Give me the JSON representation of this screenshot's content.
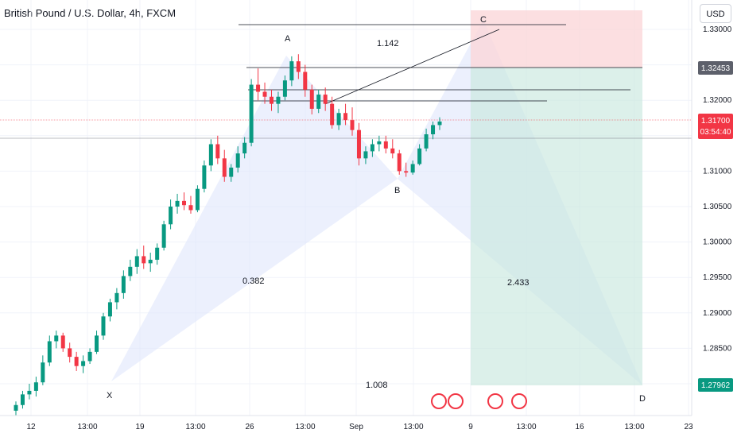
{
  "title": "British Pound / U.S. Dollar, 4h, FXCM",
  "currency": "USD",
  "price_tags": {
    "c_level": "1.32453",
    "current": "1.31700",
    "countdown": "03:54:40",
    "d_level": "1.27962"
  },
  "colors": {
    "up": "#089981",
    "down": "#f23645",
    "pattern": "#dfe6fb",
    "profit": "#c9e8df",
    "loss": "#fbd7da"
  },
  "chart_data": {
    "type": "candlestick",
    "title": "British Pound / U.S. Dollar, 4h, FXCM",
    "ylim": [
      1.2735,
      1.3355
    ],
    "y_ticks": [
      "1.33000",
      "1.32500",
      "1.32000",
      "1.31500",
      "1.31000",
      "1.30500",
      "1.30000",
      "1.29500",
      "1.29000",
      "1.28500",
      "1.28000"
    ],
    "x_ticks": [
      "12",
      "13:00",
      "19",
      "13:00",
      "26",
      "13:00",
      "Sep",
      "13:00",
      "9",
      "13:00",
      "16",
      "13:00",
      "23"
    ],
    "pattern_points": [
      {
        "label": "X",
        "price": 1.2802
      },
      {
        "label": "A",
        "price": 1.3265
      },
      {
        "label": "B",
        "price": 1.3092
      },
      {
        "label": "C",
        "price": 1.3296
      },
      {
        "label": "D",
        "price": 1.2796
      }
    ],
    "pattern_ratios": [
      "0.382",
      "1.142",
      "2.433",
      "1.008"
    ],
    "levels": [
      1.3315,
      1.32453,
      1.3215,
      1.3198,
      1.3171
    ],
    "candles": [
      [
        1.2762,
        1.2775,
        1.2755,
        1.277
      ],
      [
        1.277,
        1.279,
        1.2765,
        1.2785
      ],
      [
        1.2785,
        1.28,
        1.2778,
        1.279
      ],
      [
        1.279,
        1.281,
        1.2782,
        1.2802
      ],
      [
        1.2802,
        1.284,
        1.2798,
        1.283
      ],
      [
        1.283,
        1.2868,
        1.2825,
        1.286
      ],
      [
        1.286,
        1.2875,
        1.285,
        1.2868
      ],
      [
        1.2868,
        1.2872,
        1.2845,
        1.285
      ],
      [
        1.285,
        1.2858,
        1.283,
        1.2838
      ],
      [
        1.2838,
        1.2845,
        1.2818,
        1.2825
      ],
      [
        1.2825,
        1.284,
        1.2815,
        1.2832
      ],
      [
        1.2832,
        1.285,
        1.2828,
        1.2845
      ],
      [
        1.2845,
        1.2875,
        1.2842,
        1.2868
      ],
      [
        1.2868,
        1.29,
        1.2862,
        1.2895
      ],
      [
        1.2895,
        1.292,
        1.2888,
        1.2915
      ],
      [
        1.2915,
        1.2935,
        1.2905,
        1.2928
      ],
      [
        1.2928,
        1.296,
        1.292,
        1.2952
      ],
      [
        1.2952,
        1.2975,
        1.2945,
        1.2965
      ],
      [
        1.2965,
        1.299,
        1.2955,
        1.298
      ],
      [
        1.298,
        1.2995,
        1.2962,
        1.297
      ],
      [
        1.297,
        1.2985,
        1.2958,
        1.2975
      ],
      [
        1.2975,
        1.2998,
        1.2968,
        1.2992
      ],
      [
        1.2992,
        1.303,
        1.2988,
        1.3025
      ],
      [
        1.3025,
        1.306,
        1.3018,
        1.305
      ],
      [
        1.305,
        1.3068,
        1.304,
        1.3058
      ],
      [
        1.3058,
        1.307,
        1.3045,
        1.3052
      ],
      [
        1.3052,
        1.3065,
        1.304,
        1.3045
      ],
      [
        1.3045,
        1.308,
        1.3042,
        1.3075
      ],
      [
        1.3075,
        1.3115,
        1.307,
        1.3108
      ],
      [
        1.3108,
        1.3145,
        1.31,
        1.3138
      ],
      [
        1.3138,
        1.315,
        1.311,
        1.3118
      ],
      [
        1.3118,
        1.313,
        1.3085,
        1.3092
      ],
      [
        1.3092,
        1.311,
        1.3085,
        1.3105
      ],
      [
        1.3105,
        1.3135,
        1.3098,
        1.3125
      ],
      [
        1.3125,
        1.3148,
        1.3118,
        1.314
      ],
      [
        1.314,
        1.323,
        1.3135,
        1.3222
      ],
      [
        1.3222,
        1.3245,
        1.32,
        1.3212
      ],
      [
        1.3212,
        1.3225,
        1.3195,
        1.3205
      ],
      [
        1.3205,
        1.3215,
        1.3185,
        1.3195
      ],
      [
        1.3195,
        1.3212,
        1.3182,
        1.3205
      ],
      [
        1.3205,
        1.3235,
        1.32,
        1.3228
      ],
      [
        1.3228,
        1.3262,
        1.322,
        1.3255
      ],
      [
        1.3255,
        1.3265,
        1.323,
        1.324
      ],
      [
        1.324,
        1.325,
        1.3205,
        1.3215
      ],
      [
        1.3215,
        1.3222,
        1.318,
        1.3188
      ],
      [
        1.3188,
        1.3215,
        1.3182,
        1.3208
      ],
      [
        1.3208,
        1.3218,
        1.3185,
        1.3195
      ],
      [
        1.3195,
        1.3205,
        1.316,
        1.3165
      ],
      [
        1.3165,
        1.3188,
        1.3158,
        1.3182
      ],
      [
        1.3182,
        1.3195,
        1.3165,
        1.3172
      ],
      [
        1.3172,
        1.319,
        1.315,
        1.3158
      ],
      [
        1.3158,
        1.3168,
        1.3108,
        1.3118
      ],
      [
        1.3118,
        1.3135,
        1.311,
        1.3128
      ],
      [
        1.3128,
        1.3145,
        1.312,
        1.3138
      ],
      [
        1.3138,
        1.315,
        1.3128,
        1.3142
      ],
      [
        1.3142,
        1.315,
        1.3125,
        1.3132
      ],
      [
        1.3132,
        1.3145,
        1.3118,
        1.3125
      ],
      [
        1.3125,
        1.313,
        1.3095,
        1.31
      ],
      [
        1.31,
        1.3112,
        1.3092,
        1.3098
      ],
      [
        1.3098,
        1.3115,
        1.3095,
        1.311
      ],
      [
        1.311,
        1.3138,
        1.3108,
        1.3132
      ],
      [
        1.3132,
        1.316,
        1.3128,
        1.3152
      ],
      [
        1.3152,
        1.317,
        1.3145,
        1.3165
      ],
      [
        1.3165,
        1.3176,
        1.3158,
        1.317
      ]
    ]
  }
}
